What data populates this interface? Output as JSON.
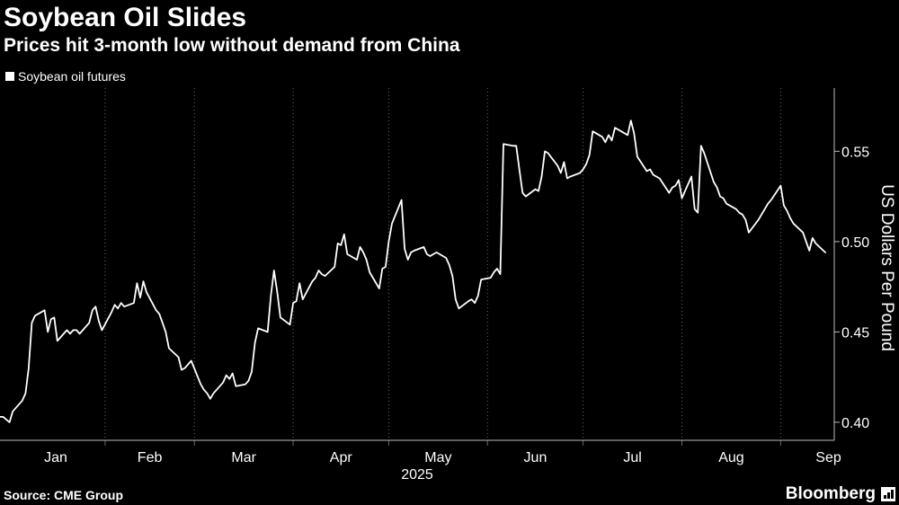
{
  "header": {
    "title": "Soybean Oil Slides",
    "subtitle": "Prices hit 3-month low without demand from China"
  },
  "legend": {
    "label": "Soybean oil futures"
  },
  "footer": {
    "source": "Source: CME Group",
    "brand": "Bloomberg"
  },
  "colors": {
    "background": "#000000",
    "line": "#ffffff",
    "grid": "#666666",
    "text": "#ffffff"
  },
  "chart_data": {
    "type": "line",
    "title": "Soybean Oil Slides",
    "subtitle": "Prices hit 3-month low without demand from China",
    "xlabel": "2025",
    "ylabel": "US Dollars Per Pound",
    "ylim": [
      0.39,
      0.585
    ],
    "xlim": [
      "2024-12-30",
      "2025-09-15"
    ],
    "yticks": [
      0.4,
      0.45,
      0.5,
      0.55
    ],
    "ytick_labels": [
      "0.40",
      "0.45",
      "0.50",
      "0.55"
    ],
    "x_year_label": "2025",
    "xticks": [
      {
        "label": "Jan",
        "date": "2025-01-01"
      },
      {
        "label": "Feb",
        "date": "2025-02-01"
      },
      {
        "label": "Mar",
        "date": "2025-03-01"
      },
      {
        "label": "Apr",
        "date": "2025-04-01"
      },
      {
        "label": "May",
        "date": "2025-05-01"
      },
      {
        "label": "Jun",
        "date": "2025-06-01"
      },
      {
        "label": "Jul",
        "date": "2025-07-01"
      },
      {
        "label": "Aug",
        "date": "2025-08-01"
      },
      {
        "label": "Sep",
        "date": "2025-09-01"
      }
    ],
    "grid": "vertical dotted at month starts",
    "legend_position": "top-left",
    "series": [
      {
        "name": "Soybean oil futures",
        "x": [
          "2024-12-30",
          "2024-12-31",
          "2025-01-02",
          "2025-01-03",
          "2025-01-06",
          "2025-01-07",
          "2025-01-08",
          "2025-01-09",
          "2025-01-10",
          "2025-01-13",
          "2025-01-14",
          "2025-01-15",
          "2025-01-16",
          "2025-01-17",
          "2025-01-20",
          "2025-01-21",
          "2025-01-22",
          "2025-01-23",
          "2025-01-24",
          "2025-01-27",
          "2025-01-28",
          "2025-01-29",
          "2025-01-30",
          "2025-01-31",
          "2025-02-03",
          "2025-02-04",
          "2025-02-05",
          "2025-02-06",
          "2025-02-07",
          "2025-02-10",
          "2025-02-11",
          "2025-02-12",
          "2025-02-13",
          "2025-02-14",
          "2025-02-17",
          "2025-02-18",
          "2025-02-19",
          "2025-02-20",
          "2025-02-21",
          "2025-02-24",
          "2025-02-25",
          "2025-02-26",
          "2025-02-27",
          "2025-02-28",
          "2025-03-03",
          "2025-03-04",
          "2025-03-05",
          "2025-03-06",
          "2025-03-07",
          "2025-03-10",
          "2025-03-11",
          "2025-03-12",
          "2025-03-13",
          "2025-03-14",
          "2025-03-17",
          "2025-03-18",
          "2025-03-19",
          "2025-03-20",
          "2025-03-21",
          "2025-03-24",
          "2025-03-25",
          "2025-03-26",
          "2025-03-27",
          "2025-03-28",
          "2025-03-31",
          "2025-04-01",
          "2025-04-02",
          "2025-04-03",
          "2025-04-04",
          "2025-04-07",
          "2025-04-08",
          "2025-04-09",
          "2025-04-10",
          "2025-04-11",
          "2025-04-14",
          "2025-04-15",
          "2025-04-16",
          "2025-04-17",
          "2025-04-18",
          "2025-04-21",
          "2025-04-22",
          "2025-04-23",
          "2025-04-24",
          "2025-04-25",
          "2025-04-28",
          "2025-04-29",
          "2025-04-30",
          "2025-05-01",
          "2025-05-02",
          "2025-05-05",
          "2025-05-06",
          "2025-05-07",
          "2025-05-08",
          "2025-05-09",
          "2025-05-12",
          "2025-05-13",
          "2025-05-14",
          "2025-05-15",
          "2025-05-16",
          "2025-05-19",
          "2025-05-20",
          "2025-05-21",
          "2025-05-22",
          "2025-05-23",
          "2025-05-26",
          "2025-05-27",
          "2025-05-28",
          "2025-05-29",
          "2025-05-30",
          "2025-06-02",
          "2025-06-03",
          "2025-06-04",
          "2025-06-05",
          "2025-06-06",
          "2025-06-09",
          "2025-06-10",
          "2025-06-11",
          "2025-06-12",
          "2025-06-13",
          "2025-06-16",
          "2025-06-17",
          "2025-06-18",
          "2025-06-19",
          "2025-06-20",
          "2025-06-23",
          "2025-06-24",
          "2025-06-25",
          "2025-06-26",
          "2025-06-27",
          "2025-06-30",
          "2025-07-01",
          "2025-07-02",
          "2025-07-03",
          "2025-07-04",
          "2025-07-07",
          "2025-07-08",
          "2025-07-09",
          "2025-07-10",
          "2025-07-11",
          "2025-07-14",
          "2025-07-15",
          "2025-07-16",
          "2025-07-17",
          "2025-07-18",
          "2025-07-21",
          "2025-07-22",
          "2025-07-23",
          "2025-07-24",
          "2025-07-25",
          "2025-07-28",
          "2025-07-29",
          "2025-07-30",
          "2025-07-31",
          "2025-08-01",
          "2025-08-04",
          "2025-08-05",
          "2025-08-06",
          "2025-08-07",
          "2025-08-08",
          "2025-08-11",
          "2025-08-12",
          "2025-08-13",
          "2025-08-14",
          "2025-08-15",
          "2025-08-18",
          "2025-08-19",
          "2025-08-20",
          "2025-08-21",
          "2025-08-22",
          "2025-08-25",
          "2025-08-26",
          "2025-08-27",
          "2025-08-28",
          "2025-08-29",
          "2025-09-01",
          "2025-09-02",
          "2025-09-03",
          "2025-09-04",
          "2025-09-05",
          "2025-09-08",
          "2025-09-09",
          "2025-09-10",
          "2025-09-11",
          "2025-09-12",
          "2025-09-15"
        ],
        "values": [
          0.403,
          0.403,
          0.4,
          0.406,
          0.412,
          0.416,
          0.43,
          0.455,
          0.459,
          0.462,
          0.45,
          0.457,
          0.458,
          0.445,
          0.451,
          0.449,
          0.451,
          0.451,
          0.449,
          0.455,
          0.462,
          0.464,
          0.456,
          0.451,
          0.461,
          0.465,
          0.463,
          0.466,
          0.464,
          0.466,
          0.477,
          0.469,
          0.478,
          0.472,
          0.462,
          0.46,
          0.455,
          0.45,
          0.441,
          0.436,
          0.429,
          0.43,
          0.432,
          0.434,
          0.421,
          0.418,
          0.416,
          0.413,
          0.416,
          0.422,
          0.426,
          0.424,
          0.427,
          0.42,
          0.421,
          0.423,
          0.428,
          0.444,
          0.452,
          0.45,
          0.47,
          0.484,
          0.472,
          0.458,
          0.454,
          0.466,
          0.467,
          0.477,
          0.468,
          0.478,
          0.48,
          0.484,
          0.482,
          0.481,
          0.486,
          0.499,
          0.498,
          0.504,
          0.493,
          0.49,
          0.497,
          0.494,
          0.49,
          0.483,
          0.474,
          0.485,
          0.486,
          0.5,
          0.51,
          0.523,
          0.496,
          0.49,
          0.494,
          0.495,
          0.497,
          0.493,
          0.492,
          0.493,
          0.494,
          0.491,
          0.487,
          0.481,
          0.468,
          0.463,
          0.467,
          0.468,
          0.466,
          0.47,
          0.479,
          0.48,
          0.483,
          0.485,
          0.482,
          0.554,
          0.553,
          0.553,
          0.54,
          0.527,
          0.525,
          0.529,
          0.528,
          0.536,
          0.55,
          0.549,
          0.542,
          0.538,
          0.544,
          0.535,
          0.536,
          0.538,
          0.54,
          0.543,
          0.548,
          0.561,
          0.558,
          0.555,
          0.559,
          0.556,
          0.563,
          0.56,
          0.559,
          0.567,
          0.56,
          0.547,
          0.539,
          0.54,
          0.537,
          0.536,
          0.535,
          0.527,
          0.53,
          0.531,
          0.534,
          0.524,
          0.536,
          0.518,
          0.516,
          0.553,
          0.549,
          0.533,
          0.53,
          0.525,
          0.524,
          0.521,
          0.518,
          0.516,
          0.515,
          0.512,
          0.505,
          0.512,
          0.515,
          0.518,
          0.521,
          0.523,
          0.531,
          0.52,
          0.517,
          0.513,
          0.51,
          0.505,
          0.5,
          0.495,
          0.502,
          0.499,
          0.494
        ]
      }
    ]
  }
}
